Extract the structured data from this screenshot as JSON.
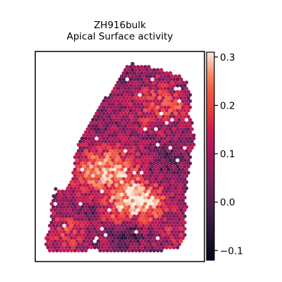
{
  "chart_data": {
    "type": "heatmap",
    "title": "ZH916bulk",
    "subtitle": "Apical Surface activity",
    "xlabel": "",
    "ylabel": "",
    "colormap": "rocket",
    "color_range": [
      -0.12,
      0.31
    ],
    "colorbar_ticks": [
      -0.1,
      0.0,
      0.1,
      0.2,
      0.3
    ],
    "colorbar_tick_labels": [
      "−0.1",
      "0.0",
      "0.1",
      "0.2",
      "0.3"
    ],
    "legend": "right",
    "grid": false,
    "marker": "hexagonal spots",
    "spots": "spatial transcriptomics spots (several thousand) with values in color_range"
  }
}
